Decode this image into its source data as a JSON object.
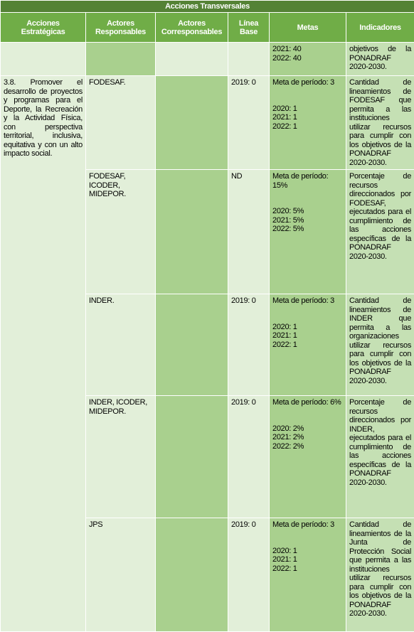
{
  "table": {
    "title": "Acciones Transversales",
    "headers": [
      "Acciones Estratégicas",
      "Actores Responsables",
      "Actores Corresponsables",
      "Línea Base",
      "Metas",
      "Indicadores"
    ],
    "accion": "3.8. Promover el desarrollo de proyectos y programas para el Deporte, la Recreación y la Actividad Física, con perspectiva territorial, inclusiva, equitativa y con un alto impacto social.",
    "rows": [
      {
        "metas": {
          "anual": [
            "2021: 40",
            "2022: 40"
          ]
        },
        "indicador": "objetivos de la PONADRAF 2020-2030."
      },
      {
        "actores": "FODESAF.",
        "linea_base": "2019: 0",
        "metas": {
          "meta": "Meta de período: 3",
          "anual": [
            "2020: 1",
            "2021: 1",
            "2022: 1"
          ]
        },
        "indicador": "Cantidad de lineamientos de FODESAF que permita a las instituciones utilizar recursos para cumplir con los objetivos de la PONADRAF 2020-2030."
      },
      {
        "actores": "FODESAF, ICODER, MIDEPOR.",
        "linea_base": "ND",
        "metas": {
          "meta": "Meta de período: 15%",
          "anual": [
            "2020: 5%",
            "2021: 5%",
            "2022: 5%"
          ]
        },
        "indicador": "Porcentaje de recursos direccionados por FODESAF, ejecutados para el cumplimiento de las acciones específicas de la PONADRAF 2020-2030."
      },
      {
        "actores": "INDER.",
        "linea_base": "2019: 0",
        "metas": {
          "meta": "Meta de período: 3",
          "anual": [
            "2020: 1",
            "2021: 1",
            "2022: 1"
          ]
        },
        "indicador": "Cantidad de lineamientos de INDER que permita a las organizaciones utilizar recursos para cumplir con los objetivos de la PONADRAF 2020-2030."
      },
      {
        "actores": "INDER, ICODER, MIDEPOR.",
        "linea_base": "2019: 0",
        "metas": {
          "meta": "Meta de período: 6%",
          "anual": [
            "2020: 2%",
            "2021: 2%",
            "2022: 2%"
          ]
        },
        "indicador": "Porcentaje de recursos direccionados por INDER, ejecutados para el cumplimiento de las acciones específicas de la PONADRAF 2020-2030."
      },
      {
        "actores": "JPS",
        "linea_base": "2019: 0",
        "metas": {
          "meta": "Meta de período: 3",
          "anual": [
            "2020: 1",
            "2021: 1",
            "2022: 1"
          ]
        },
        "indicador": "Cantidad de lineamientos de la Junta de Protección Social que permita a las instituciones utilizar recursos para cumplir con los objetivos de la PONADRAF 2020-2030."
      }
    ]
  }
}
